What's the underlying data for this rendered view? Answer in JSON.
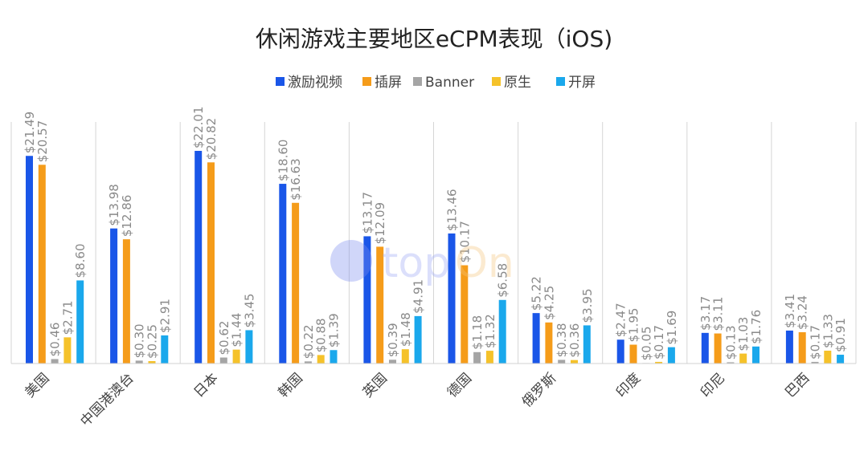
{
  "chart_data": {
    "type": "bar",
    "title": "休闲游戏主要地区eCPM表现（iOS)",
    "xlabel": "",
    "ylabel": "",
    "ylim": [
      0,
      22.5
    ],
    "grid": false,
    "legend_placement": "top-center",
    "categories": [
      "美国",
      "中国港澳台",
      "日本",
      "韩国",
      "英国",
      "德国",
      "俄罗斯",
      "印度",
      "印尼",
      "巴西"
    ],
    "series": [
      {
        "name": "激励视频",
        "color": "#1a56e8",
        "values": [
          21.49,
          13.98,
          22.01,
          18.6,
          13.17,
          13.46,
          5.22,
          2.47,
          3.17,
          3.41
        ]
      },
      {
        "name": "插屏",
        "color": "#f59c1a",
        "values": [
          20.57,
          12.86,
          20.82,
          16.63,
          12.09,
          10.17,
          4.25,
          1.95,
          3.11,
          3.24
        ]
      },
      {
        "name": "Banner",
        "color": "#a5a5a5",
        "values": [
          0.46,
          0.3,
          0.62,
          0.22,
          0.39,
          1.18,
          0.38,
          0.05,
          0.13,
          0.17
        ]
      },
      {
        "name": "原生",
        "color": "#f5c22a",
        "values": [
          2.71,
          0.25,
          1.44,
          0.88,
          1.48,
          1.32,
          0.36,
          0.17,
          1.03,
          1.33
        ]
      },
      {
        "name": "开屏",
        "color": "#1aa8ec",
        "values": [
          8.6,
          2.91,
          3.45,
          1.39,
          4.91,
          6.58,
          3.95,
          1.69,
          1.76,
          0.91
        ]
      }
    ],
    "label_prefix": "$"
  }
}
